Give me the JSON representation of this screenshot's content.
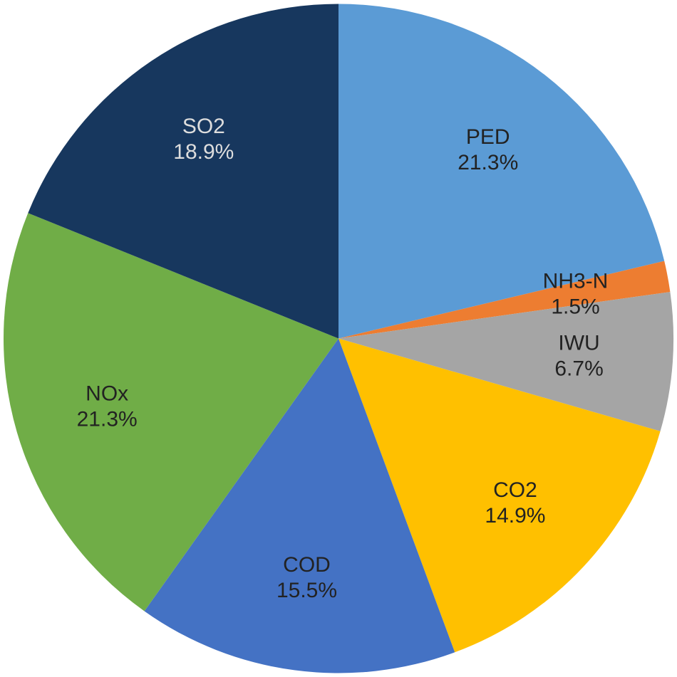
{
  "chart_data": {
    "type": "pie",
    "title": "",
    "slices": [
      {
        "label": "PED",
        "value": 21.3,
        "value_label": "21.3%",
        "color": "#5B9BD5",
        "text_color": "#222222"
      },
      {
        "label": "NH3-N",
        "value": 1.5,
        "value_label": "1.5%",
        "color": "#ED7D31",
        "text_color": "#222222"
      },
      {
        "label": "IWU",
        "value": 6.7,
        "value_label": "6.7%",
        "color": "#A5A5A5",
        "text_color": "#222222"
      },
      {
        "label": "CO2",
        "value": 14.9,
        "value_label": "14.9%",
        "color": "#FFC000",
        "text_color": "#222222"
      },
      {
        "label": "COD",
        "value": 15.5,
        "value_label": "15.5%",
        "color": "#4472C4",
        "text_color": "#222222"
      },
      {
        "label": "NOx",
        "value": 21.3,
        "value_label": "21.3%",
        "color": "#70AD47",
        "text_color": "#222222"
      },
      {
        "label": "SO2",
        "value": 18.9,
        "value_label": "18.9%",
        "color": "#17375E",
        "text_color": "#DDDDDD"
      }
    ],
    "start_angle_deg": 0,
    "direction": "clockwise",
    "legend": "none"
  }
}
